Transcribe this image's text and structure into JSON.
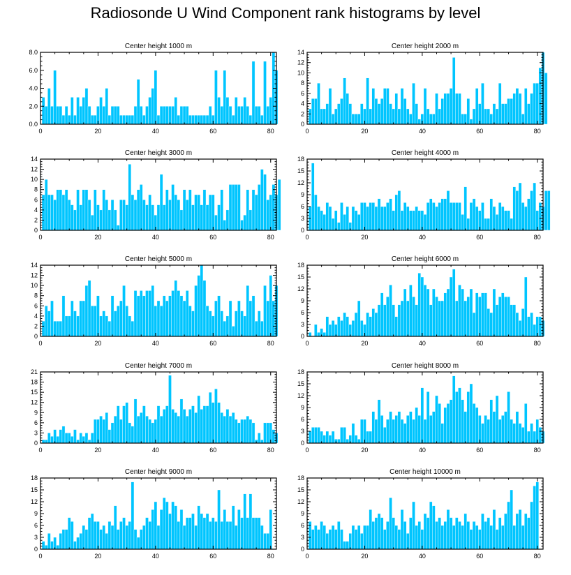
{
  "title": "Radiosonde U Wind Component rank histograms by level",
  "chart_data": [
    {
      "type": "bar",
      "title": "Center height 1000 m",
      "x_start": 1,
      "xlim": [
        0,
        82
      ],
      "xticks": [
        0,
        20,
        40,
        60,
        80
      ],
      "ylim": [
        0,
        8
      ],
      "yticks": [
        0,
        2,
        4,
        6,
        8
      ],
      "ytick_labels": [
        "0.0",
        "2.0",
        "4.0",
        "6.0",
        "8.0"
      ],
      "values": [
        3,
        2,
        4,
        2,
        6,
        2,
        2,
        1,
        2,
        1,
        3,
        1,
        3,
        2,
        3,
        4,
        2,
        1,
        1,
        2,
        3,
        2,
        4,
        1,
        2,
        2,
        2,
        1,
        1,
        1,
        1,
        1,
        2,
        5,
        2,
        1,
        2,
        3,
        4,
        6,
        1,
        2,
        2,
        2,
        2,
        2,
        3,
        1,
        2,
        2,
        2,
        1,
        1,
        1,
        1,
        1,
        1,
        1,
        2,
        1,
        6,
        3,
        2,
        6,
        3,
        2,
        1,
        3,
        2,
        2,
        3,
        2,
        1,
        7,
        2,
        2,
        1,
        7,
        2,
        3,
        8,
        6
      ]
    },
    {
      "type": "bar",
      "title": "Center height 2000 m",
      "x_start": 1,
      "xlim": [
        0,
        82
      ],
      "xticks": [
        0,
        20,
        40,
        60,
        80
      ],
      "ylim": [
        0,
        14
      ],
      "yticks": [
        0,
        2,
        4,
        6,
        8,
        10,
        12,
        14
      ],
      "ytick_labels": [
        "0",
        "2",
        "4",
        "6",
        "8",
        "10",
        "12",
        "14"
      ],
      "values": [
        3,
        5,
        5,
        8,
        3,
        3,
        4,
        7,
        2,
        3,
        4,
        5,
        9,
        6,
        4,
        2,
        2,
        2,
        4,
        3,
        9,
        3,
        7,
        5,
        4,
        5,
        7,
        7,
        4,
        3,
        6,
        3,
        7,
        5,
        3,
        2,
        8,
        4,
        1,
        2,
        7,
        3,
        2,
        2,
        6,
        3,
        5,
        6,
        6,
        7,
        13,
        6,
        6,
        2,
        2,
        5,
        1,
        3,
        7,
        4,
        8,
        3,
        3,
        2,
        4,
        3,
        8,
        4,
        4,
        5,
        5,
        6,
        7,
        6,
        2,
        7,
        4,
        6,
        8,
        8,
        11,
        14,
        10
      ]
    },
    {
      "type": "bar",
      "title": "Center height 3000 m",
      "x_start": 1,
      "xlim": [
        0,
        82
      ],
      "xticks": [
        0,
        20,
        40,
        60,
        80
      ],
      "ylim": [
        0,
        14
      ],
      "yticks": [
        0,
        2,
        4,
        6,
        8,
        10,
        12,
        14
      ],
      "ytick_labels": [
        "0",
        "2",
        "4",
        "6",
        "8",
        "10",
        "12",
        "14"
      ],
      "values": [
        7,
        10,
        7,
        7,
        6,
        8,
        8,
        7,
        8,
        6,
        5,
        4,
        8,
        5,
        8,
        8,
        6,
        3,
        8,
        5,
        4,
        8,
        6,
        4,
        6,
        4,
        1,
        6,
        6,
        5,
        13,
        7,
        6,
        8,
        9,
        6,
        5,
        7,
        5,
        3,
        5,
        11,
        5,
        8,
        6,
        9,
        7,
        6,
        4,
        8,
        6,
        8,
        5,
        7,
        7,
        5,
        8,
        5,
        7,
        7,
        3,
        5,
        8,
        2,
        4,
        9,
        9,
        9,
        9,
        2,
        3,
        8,
        4,
        8,
        7,
        9,
        12,
        11,
        6,
        7,
        9,
        7,
        10
      ]
    },
    {
      "type": "bar",
      "title": "Center height 4000 m",
      "x_start": 1,
      "xlim": [
        0,
        82
      ],
      "xticks": [
        0,
        20,
        40,
        60,
        80
      ],
      "ylim": [
        0,
        18
      ],
      "yticks": [
        0,
        3,
        6,
        9,
        12,
        15,
        18
      ],
      "ytick_labels": [
        "0",
        "3",
        "6",
        "9",
        "12",
        "15",
        "18"
      ],
      "values": [
        6,
        17,
        9,
        6,
        5,
        4,
        7,
        6,
        3,
        5,
        2,
        7,
        4,
        6,
        2,
        6,
        5,
        4,
        7,
        7,
        6,
        7,
        7,
        6,
        8,
        6,
        6,
        7,
        8,
        5,
        9,
        10,
        5,
        7,
        6,
        5,
        5,
        6,
        5,
        5,
        4,
        7,
        8,
        7,
        6,
        7,
        8,
        8,
        10,
        7,
        7,
        7,
        7,
        4,
        11,
        3,
        7,
        8,
        6,
        5,
        7,
        3,
        3,
        8,
        6,
        4,
        7,
        6,
        5,
        5,
        3,
        11,
        10,
        12,
        7,
        6,
        8,
        10,
        12,
        5,
        7,
        6,
        10,
        10
      ]
    },
    {
      "type": "bar",
      "title": "Center height 5000 m",
      "x_start": 1,
      "xlim": [
        0,
        82
      ],
      "xticks": [
        0,
        20,
        40,
        60,
        80
      ],
      "ylim": [
        0,
        14
      ],
      "yticks": [
        0,
        2,
        4,
        6,
        8,
        10,
        12,
        14
      ],
      "ytick_labels": [
        "0",
        "2",
        "4",
        "6",
        "8",
        "10",
        "12",
        "14"
      ],
      "values": [
        3,
        6,
        5,
        7,
        3,
        3,
        3,
        8,
        4,
        4,
        7,
        5,
        4,
        7,
        7,
        10,
        11,
        6,
        6,
        8,
        4,
        5,
        4,
        3,
        8,
        5,
        6,
        7,
        10,
        6,
        4,
        3,
        9,
        8,
        9,
        8,
        9,
        9,
        10,
        6,
        7,
        6,
        8,
        7,
        8,
        9,
        11,
        9,
        8,
        7,
        9,
        6,
        5,
        10,
        12,
        14,
        11,
        6,
        5,
        4,
        7,
        8,
        5,
        3,
        4,
        7,
        2,
        5,
        7,
        5,
        4,
        10,
        7,
        8,
        3,
        5,
        3,
        10,
        7,
        12,
        7,
        10
      ]
    },
    {
      "type": "bar",
      "title": "Center height 6000 m",
      "x_start": 1,
      "xlim": [
        0,
        82
      ],
      "xticks": [
        0,
        20,
        40,
        60,
        80
      ],
      "ylim": [
        0,
        18
      ],
      "yticks": [
        0,
        3,
        6,
        9,
        12,
        15,
        18
      ],
      "ytick_labels": [
        "0",
        "3",
        "6",
        "9",
        "12",
        "15",
        "18"
      ],
      "values": [
        1,
        0,
        3,
        1,
        2,
        1,
        5,
        3,
        4,
        3,
        5,
        4,
        6,
        5,
        3,
        4,
        6,
        9,
        4,
        3,
        6,
        5,
        7,
        6,
        8,
        11,
        8,
        10,
        13,
        8,
        5,
        8,
        9,
        12,
        9,
        13,
        10,
        8,
        16,
        15,
        13,
        12,
        8,
        12,
        10,
        9,
        9,
        11,
        12,
        15,
        17,
        9,
        13,
        12,
        9,
        10,
        12,
        6,
        11,
        10,
        11,
        11,
        7,
        6,
        12,
        8,
        10,
        11,
        10,
        10,
        8,
        8,
        6,
        4,
        7,
        15,
        5,
        6,
        3,
        5,
        5,
        4
      ]
    },
    {
      "type": "bar",
      "title": "Center height 7000 m",
      "x_start": 1,
      "xlim": [
        0,
        82
      ],
      "xticks": [
        0,
        20,
        40,
        60,
        80
      ],
      "ylim": [
        0,
        21
      ],
      "yticks": [
        0,
        3,
        6,
        9,
        12,
        15,
        18,
        21
      ],
      "ytick_labels": [
        "0",
        "3",
        "6",
        "9",
        "12",
        "15",
        "18",
        "21"
      ],
      "values": [
        1,
        1,
        3,
        2,
        4,
        2,
        4,
        5,
        3,
        3,
        2,
        4,
        1,
        3,
        2,
        3,
        1,
        3,
        7,
        7,
        8,
        7,
        9,
        4,
        6,
        8,
        11,
        7,
        11,
        12,
        6,
        5,
        13,
        8,
        9,
        11,
        8,
        7,
        6,
        7,
        11,
        8,
        10,
        11,
        20,
        10,
        9,
        8,
        13,
        10,
        8,
        10,
        11,
        9,
        14,
        10,
        11,
        11,
        15,
        12,
        16,
        12,
        9,
        8,
        10,
        8,
        9,
        7,
        6,
        7,
        7,
        8,
        7,
        6,
        1,
        3,
        1,
        6,
        6,
        6,
        4,
        3
      ]
    },
    {
      "type": "bar",
      "title": "Center height 8000 m",
      "x_start": 1,
      "xlim": [
        0,
        82
      ],
      "xticks": [
        0,
        20,
        40,
        60,
        80
      ],
      "ylim": [
        0,
        18
      ],
      "yticks": [
        0,
        3,
        6,
        9,
        12,
        15,
        18
      ],
      "ytick_labels": [
        "0",
        "3",
        "6",
        "9",
        "12",
        "15",
        "18"
      ],
      "values": [
        3,
        4,
        4,
        4,
        3,
        2,
        3,
        2,
        3,
        1,
        1,
        4,
        4,
        1,
        2,
        5,
        2,
        1,
        6,
        6,
        3,
        3,
        8,
        6,
        11,
        7,
        4,
        6,
        8,
        6,
        7,
        8,
        6,
        5,
        7,
        8,
        6,
        9,
        7,
        14,
        6,
        13,
        7,
        8,
        12,
        10,
        5,
        9,
        10,
        11,
        17,
        13,
        14,
        11,
        8,
        13,
        15,
        10,
        9,
        7,
        5,
        7,
        6,
        11,
        8,
        12,
        6,
        7,
        8,
        13,
        6,
        5,
        8,
        5,
        4,
        10,
        3,
        5,
        3,
        6,
        4,
        3
      ]
    },
    {
      "type": "bar",
      "title": "Center height 9000 m",
      "x_start": 1,
      "xlim": [
        0,
        82
      ],
      "xticks": [
        0,
        20,
        40,
        60,
        80
      ],
      "ylim": [
        0,
        18
      ],
      "yticks": [
        0,
        3,
        6,
        9,
        12,
        15,
        18
      ],
      "ytick_labels": [
        "0",
        "3",
        "6",
        "9",
        "12",
        "15",
        "18"
      ],
      "values": [
        2,
        1,
        4,
        2,
        3,
        1,
        4,
        5,
        5,
        8,
        7,
        2,
        3,
        4,
        6,
        5,
        8,
        9,
        7,
        7,
        5,
        6,
        4,
        7,
        6,
        11,
        5,
        7,
        8,
        6,
        7,
        17,
        5,
        3,
        5,
        6,
        8,
        7,
        10,
        12,
        6,
        10,
        13,
        12,
        9,
        12,
        11,
        7,
        10,
        6,
        8,
        8,
        9,
        6,
        11,
        9,
        8,
        9,
        7,
        8,
        7,
        15,
        7,
        10,
        7,
        7,
        11,
        6,
        10,
        8,
        14,
        8,
        14,
        8,
        8,
        8,
        6,
        4,
        4,
        10
      ]
    },
    {
      "type": "bar",
      "title": "Center height 10000 m",
      "x_start": 1,
      "xlim": [
        0,
        82
      ],
      "xticks": [
        0,
        20,
        40,
        60,
        80
      ],
      "ylim": [
        0,
        18
      ],
      "yticks": [
        0,
        3,
        6,
        9,
        12,
        15,
        18
      ],
      "ytick_labels": [
        "0",
        "3",
        "6",
        "9",
        "12",
        "15",
        "18"
      ],
      "values": [
        7,
        5,
        6,
        5,
        7,
        6,
        4,
        5,
        6,
        5,
        7,
        5,
        2,
        2,
        4,
        6,
        5,
        6,
        4,
        6,
        6,
        10,
        7,
        8,
        9,
        8,
        5,
        7,
        13,
        8,
        6,
        5,
        10,
        7,
        4,
        8,
        12,
        6,
        7,
        5,
        9,
        8,
        12,
        11,
        7,
        8,
        6,
        7,
        10,
        8,
        6,
        8,
        7,
        6,
        9,
        7,
        5,
        7,
        6,
        5,
        9,
        7,
        8,
        6,
        10,
        5,
        8,
        6,
        9,
        12,
        15,
        6,
        9,
        10,
        6,
        9,
        8,
        12,
        16,
        17
      ]
    }
  ]
}
